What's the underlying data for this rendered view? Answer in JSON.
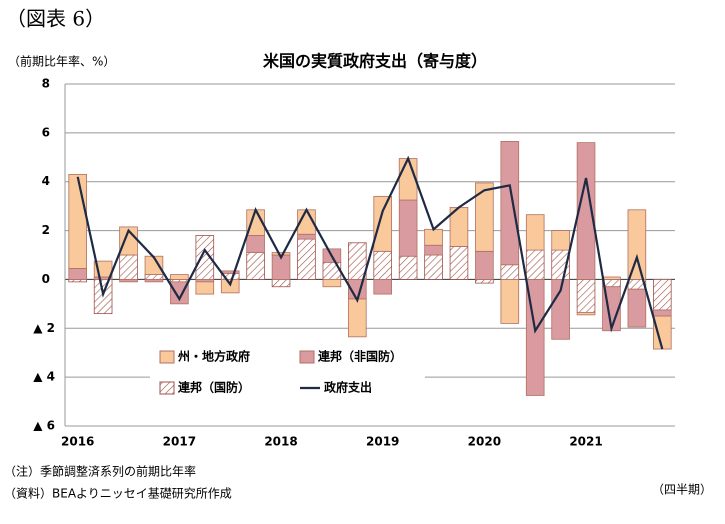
{
  "header": {
    "figure": "（図表 6）",
    "unit": "（前期比年率、%）"
  },
  "chart_data": {
    "type": "bar",
    "stacked": true,
    "title": "米国の実質政府支出（寄与度）",
    "categories": [
      "2016",
      null,
      null,
      null,
      "2017",
      null,
      null,
      null,
      "2018",
      null,
      null,
      null,
      "2019",
      null,
      null,
      null,
      "2020",
      null,
      null,
      null,
      "2021",
      null,
      null,
      null
    ],
    "series": [
      {
        "name": "連邦（国防）",
        "color": "#a0524a",
        "pattern": "hatch",
        "values": [
          -0.1,
          -1.4,
          1.0,
          0.2,
          -0.1,
          1.8,
          0.25,
          1.1,
          -0.3,
          1.65,
          0.7,
          1.5,
          1.15,
          0.95,
          1.0,
          1.35,
          -0.15,
          0.6,
          1.2,
          1.2,
          -1.35,
          -0.3,
          -0.4,
          -1.25
        ]
      },
      {
        "name": "連邦（非国防）",
        "color": "#d99ba0",
        "values": [
          0.45,
          0.1,
          -0.1,
          -0.1,
          -0.9,
          -0.1,
          0.1,
          0.7,
          1.0,
          0.2,
          0.55,
          -0.8,
          -0.6,
          2.3,
          0.4,
          0,
          1.15,
          5.05,
          -4.75,
          -2.45,
          5.6,
          -1.8,
          -1.55,
          -0.25
        ]
      },
      {
        "name": "州・地方政府",
        "color": "#f9c89b",
        "values": [
          3.85,
          0.65,
          1.15,
          0.75,
          0.2,
          -0.5,
          -0.55,
          1.05,
          0.1,
          1.0,
          -0.3,
          -1.55,
          2.25,
          1.7,
          0.65,
          1.6,
          2.8,
          -1.8,
          1.45,
          0.8,
          -0.1,
          0.1,
          2.85,
          -1.35
        ]
      },
      {
        "name": "政府支出",
        "color": "#1f2a44",
        "type": "line",
        "values": [
          4.2,
          -0.6,
          2.0,
          0.9,
          -0.8,
          1.2,
          -0.2,
          2.85,
          0.9,
          2.85,
          0.95,
          -0.85,
          2.8,
          4.95,
          2.05,
          2.95,
          3.65,
          3.85,
          -2.1,
          -0.45,
          4.15,
          -2.0,
          0.9,
          -2.85
        ]
      }
    ],
    "ylim": [
      -6,
      8
    ],
    "yticks": [
      {
        "value": -6,
        "label": "▲ 6"
      },
      {
        "value": -4,
        "label": "▲ 4"
      },
      {
        "value": -2,
        "label": "▲ 2"
      },
      0,
      2,
      4,
      6,
      8
    ],
    "grid": true
  },
  "footer": {
    "note": "（注）季節調整済系列の前期比年率",
    "source": "（資料）BEAよりニッセイ基礎研究所作成",
    "xunit": "（四半期）"
  }
}
